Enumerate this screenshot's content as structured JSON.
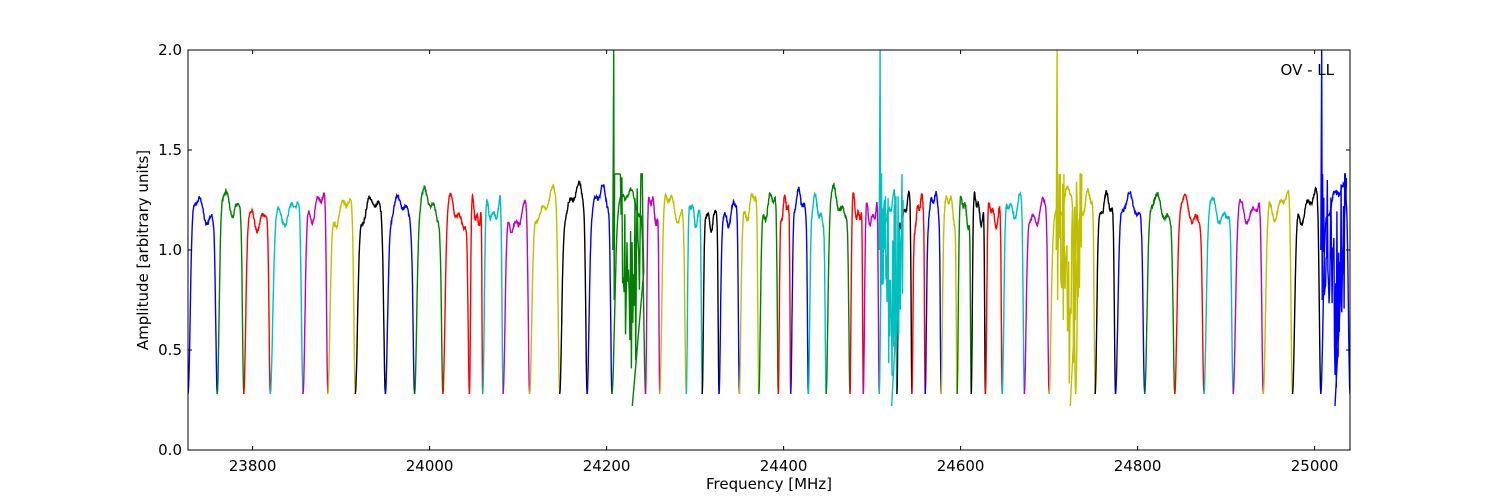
{
  "chart_data": {
    "type": "line",
    "title": "",
    "annotation": "OV - LL",
    "xlabel": "Frequency [MHz]",
    "ylabel": "Amplitude [arbitrary units]",
    "xlim": [
      23727,
      25040
    ],
    "ylim": [
      0.0,
      2.0
    ],
    "x_ticks": [
      23800,
      24000,
      24200,
      24400,
      24600,
      24800,
      25000
    ],
    "y_ticks": [
      0.0,
      0.5,
      1.0,
      1.5,
      2.0
    ],
    "x_tick_labels": [
      "23800",
      "24000",
      "24200",
      "24400",
      "24600",
      "24800",
      "25000"
    ],
    "y_tick_labels": [
      "0.0",
      "0.5",
      "1.0",
      "1.5",
      "2.0"
    ],
    "grid": false,
    "legend": "none",
    "color_cycle": [
      "#0000ff",
      "#007f00",
      "#ff0000",
      "#00bfbf",
      "#bf00bf",
      "#bfbf00",
      "#000000"
    ],
    "series_description": "Overlapping bandpass segments, each ~30 MHz wide with a plateau near 1.2 and sharp drops to ~0.28 at the edges, cycling through the color list.",
    "segments": [
      {
        "color": "#0000ff",
        "x0": 23727,
        "x1": 23760,
        "level": 1.2
      },
      {
        "color": "#007f00",
        "x0": 23760,
        "x1": 23790,
        "level": 1.25
      },
      {
        "color": "#ff0000",
        "x0": 23790,
        "x1": 23820,
        "level": 1.18
      },
      {
        "color": "#00bfbf",
        "x0": 23820,
        "x1": 23857,
        "level": 1.21
      },
      {
        "color": "#bf00bf",
        "x0": 23857,
        "x1": 23885,
        "level": 1.22
      },
      {
        "color": "#bfbf00",
        "x0": 23885,
        "x1": 23916,
        "level": 1.19
      },
      {
        "color": "#000000",
        "x0": 23916,
        "x1": 23950,
        "level": 1.19
      },
      {
        "color": "#0000ff",
        "x0": 23950,
        "x1": 23983,
        "level": 1.19
      },
      {
        "color": "#007f00",
        "x0": 23983,
        "x1": 24015,
        "level": 1.22
      },
      {
        "color": "#ff0000",
        "x0": 24015,
        "x1": 24045,
        "level": 1.19
      },
      {
        "color": "#ff0000",
        "x0": 24045,
        "x1": 24060,
        "level": 1.2
      },
      {
        "color": "#00bfbf",
        "x0": 24060,
        "x1": 24083,
        "level": 1.22
      },
      {
        "color": "#bf00bf",
        "x0": 24083,
        "x1": 24113,
        "level": 1.17
      },
      {
        "color": "#bfbf00",
        "x0": 24113,
        "x1": 24147,
        "level": 1.23
      },
      {
        "color": "#000000",
        "x0": 24147,
        "x1": 24178,
        "level": 1.25
      },
      {
        "color": "#0000ff",
        "x0": 24178,
        "x1": 24206,
        "level": 1.24
      },
      {
        "color": "#007f00",
        "x0": 24206,
        "x1": 24244,
        "level": 1.23
      },
      {
        "color": "#bf00bf",
        "x0": 24244,
        "x1": 24260,
        "level": 1.2
      },
      {
        "color": "#bfbf00",
        "x0": 24260,
        "x1": 24290,
        "level": 1.22
      },
      {
        "color": "#00bfbf",
        "x0": 24290,
        "x1": 24308,
        "level": 1.2
      },
      {
        "color": "#000000",
        "x0": 24308,
        "x1": 24327,
        "level": 1.18
      },
      {
        "color": "#0000ff",
        "x0": 24327,
        "x1": 24350,
        "level": 1.2
      },
      {
        "color": "#bfbf00",
        "x0": 24350,
        "x1": 24372,
        "level": 1.22
      },
      {
        "color": "#007f00",
        "x0": 24372,
        "x1": 24394,
        "level": 1.21
      },
      {
        "color": "#ff0000",
        "x0": 24394,
        "x1": 24408,
        "level": 1.19
      },
      {
        "color": "#0000ff",
        "x0": 24408,
        "x1": 24428,
        "level": 1.22
      },
      {
        "color": "#00bfbf",
        "x0": 24428,
        "x1": 24448,
        "level": 1.19
      },
      {
        "color": "#007f00",
        "x0": 24448,
        "x1": 24475,
        "level": 1.24
      },
      {
        "color": "#ff0000",
        "x0": 24475,
        "x1": 24490,
        "level": 1.22
      },
      {
        "color": "#bf00bf",
        "x0": 24490,
        "x1": 24508,
        "level": 1.2
      },
      {
        "color": "#00bfbf",
        "x0": 24508,
        "x1": 24528,
        "level": 1.22
      },
      {
        "color": "#000000",
        "x0": 24528,
        "x1": 24545,
        "level": 1.2
      },
      {
        "color": "#ff0000",
        "x0": 24545,
        "x1": 24560,
        "level": 1.19
      },
      {
        "color": "#0000ff",
        "x0": 24560,
        "x1": 24578,
        "level": 1.21
      },
      {
        "color": "#bfbf00",
        "x0": 24578,
        "x1": 24596,
        "level": 1.2
      },
      {
        "color": "#007f00",
        "x0": 24596,
        "x1": 24612,
        "level": 1.19
      },
      {
        "color": "#000000",
        "x0": 24612,
        "x1": 24628,
        "level": 1.21
      },
      {
        "color": "#ff0000",
        "x0": 24628,
        "x1": 24647,
        "level": 1.2
      },
      {
        "color": "#00bfbf",
        "x0": 24647,
        "x1": 24672,
        "level": 1.24
      },
      {
        "color": "#bf00bf",
        "x0": 24672,
        "x1": 24700,
        "level": 1.2
      },
      {
        "color": "#bfbf00",
        "x0": 24700,
        "x1": 24730,
        "level": 1.24
      },
      {
        "color": "#bfbf00",
        "x0": 24730,
        "x1": 24752,
        "level": 1.22
      },
      {
        "color": "#000000",
        "x0": 24752,
        "x1": 24775,
        "level": 1.2
      },
      {
        "color": "#0000ff",
        "x0": 24775,
        "x1": 24808,
        "level": 1.2
      },
      {
        "color": "#007f00",
        "x0": 24808,
        "x1": 24842,
        "level": 1.2
      },
      {
        "color": "#ff0000",
        "x0": 24842,
        "x1": 24875,
        "level": 1.2
      },
      {
        "color": "#00bfbf",
        "x0": 24875,
        "x1": 24908,
        "level": 1.21
      },
      {
        "color": "#bf00bf",
        "x0": 24908,
        "x1": 24942,
        "level": 1.22
      },
      {
        "color": "#bfbf00",
        "x0": 24942,
        "x1": 24975,
        "level": 1.24
      },
      {
        "color": "#000000",
        "x0": 24975,
        "x1": 25007,
        "level": 1.22
      },
      {
        "color": "#0000ff",
        "x0": 25007,
        "x1": 25040,
        "level": 1.25
      }
    ],
    "spikes": [
      {
        "color": "#007f00",
        "x": 24208,
        "y": 2.0,
        "x_min": 24229,
        "y_min": 0.22
      },
      {
        "color": "#00bfbf",
        "x": 24509,
        "y": 2.0,
        "x_min": 24522,
        "y_min": 0.22
      },
      {
        "color": "#bfbf00",
        "x": 24709,
        "y": 2.0,
        "x_min": 24724,
        "y_min": 0.22
      },
      {
        "color": "#0000ff",
        "x": 25008,
        "y": 2.0,
        "x_min": 25023,
        "y_min": 0.22
      }
    ]
  }
}
